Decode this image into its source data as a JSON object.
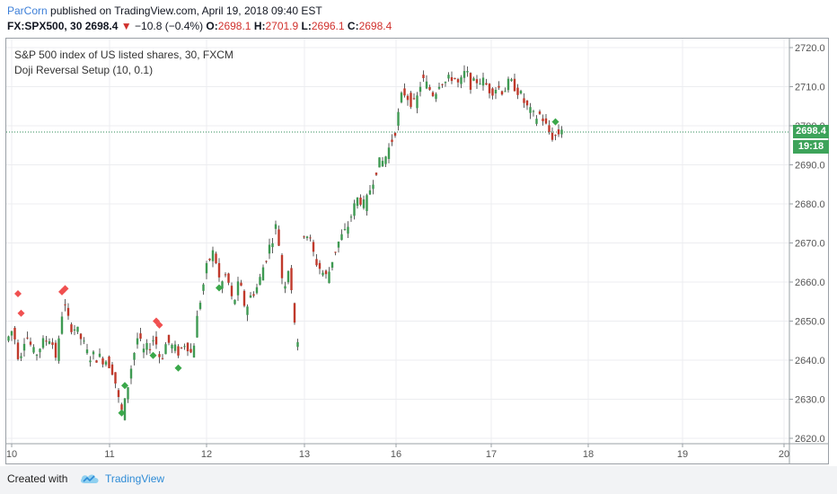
{
  "header": {
    "author": "ParCorn",
    "published_text": "published on TradingView.com, April 19, 2018 09:40 EST",
    "symbol": "FX:SPX500, 30",
    "last": "2698.4",
    "change": "−10.8 (−0.4%)",
    "o_label": "O:",
    "o_value": "2698.1",
    "h_label": "H:",
    "h_value": "2701.9",
    "l_label": "L:",
    "l_value": "2696.1",
    "c_label": "C:",
    "c_value": "2698.4"
  },
  "legend": {
    "title": "S&P 500 index of US listed shares, 30, FXCM",
    "indicator": "Doji Reversal Setup (10, 0.1)"
  },
  "price_tag": {
    "value": "2698.4",
    "timer": "19:18"
  },
  "footer": {
    "created_with": "Created with",
    "brand": "TradingView"
  },
  "colors": {
    "up": "#3e9a52",
    "down": "#c0392b",
    "wick": "#333333",
    "grid": "#ecedf0",
    "price_line": "#2e8b57",
    "price_tag": "#3da35a",
    "marker_bear": "#f05050",
    "marker_bull": "#3aa84a"
  },
  "chart_data": {
    "type": "candlestick",
    "title": "S&P 500 index of US listed shares, 30, FXCM",
    "y_ticks": [
      "2620.0",
      "2630.0",
      "2640.0",
      "2650.0",
      "2660.0",
      "2670.0",
      "2680.0",
      "2690.0",
      "2700.0",
      "2710.0",
      "2720.0"
    ],
    "ylim": [
      2619,
      2722
    ],
    "x_ticks": [
      "10",
      "11",
      "12",
      "13",
      "16",
      "17",
      "18",
      "19",
      "20"
    ],
    "current_price": 2698.4,
    "grid": true,
    "close_path": [
      [
        0,
        2645
      ],
      [
        2,
        2648
      ],
      [
        4,
        2640
      ],
      [
        6,
        2647
      ],
      [
        9,
        2641
      ],
      [
        11,
        2644
      ],
      [
        14,
        2646
      ],
      [
        16,
        2640
      ],
      [
        18,
        2655
      ],
      [
        20,
        2649
      ],
      [
        22,
        2648
      ],
      [
        24,
        2645
      ],
      [
        26,
        2641
      ],
      [
        28,
        2641
      ],
      [
        32,
        2640
      ],
      [
        34,
        2637
      ],
      [
        36,
        2628
      ],
      [
        37,
        2626
      ],
      [
        38,
        2631
      ],
      [
        40,
        2640
      ],
      [
        42,
        2647
      ],
      [
        43,
        2642
      ],
      [
        45,
        2643
      ],
      [
        47,
        2646
      ],
      [
        49,
        2640
      ],
      [
        51,
        2645
      ],
      [
        53,
        2643
      ],
      [
        55,
        2642
      ],
      [
        57,
        2645
      ],
      [
        59,
        2641
      ],
      [
        61,
        2653
      ],
      [
        64,
        2665
      ],
      [
        66,
        2668
      ],
      [
        68,
        2659
      ],
      [
        70,
        2662
      ],
      [
        72,
        2654
      ],
      [
        74,
        2660
      ],
      [
        76,
        2653
      ],
      [
        78,
        2657
      ],
      [
        80,
        2659
      ],
      [
        82,
        2665
      ],
      [
        84,
        2670
      ],
      [
        86,
        2675
      ],
      [
        88,
        2658
      ],
      [
        90,
        2665
      ],
      [
        92,
        2644
      ],
      [
        null,
        null
      ],
      [
        94,
        2673
      ],
      [
        96,
        2672
      ],
      [
        98,
        2666
      ],
      [
        100,
        2663
      ],
      [
        102,
        2661
      ],
      [
        104,
        2667
      ],
      [
        106,
        2671
      ],
      [
        108,
        2673
      ],
      [
        110,
        2678
      ],
      [
        112,
        2682
      ],
      [
        114,
        2679
      ],
      [
        116,
        2685
      ],
      [
        118,
        2690
      ],
      [
        120,
        2691
      ],
      [
        122,
        2695
      ],
      [
        124,
        2700
      ],
      [
        126,
        2709
      ],
      [
        128,
        2707
      ],
      [
        130,
        2705
      ],
      [
        132,
        2712
      ],
      [
        134,
        2710
      ],
      [
        136,
        2708
      ],
      [
        138,
        2712
      ],
      [
        140,
        2711
      ],
      [
        142,
        2713
      ],
      [
        144,
        2710
      ],
      [
        146,
        2714
      ],
      [
        148,
        2710
      ],
      [
        150,
        2712
      ],
      [
        152,
        2711
      ],
      [
        154,
        2709
      ],
      [
        156,
        2710
      ],
      [
        158,
        2709
      ],
      [
        160,
        2711
      ],
      [
        162,
        2710
      ],
      [
        164,
        2707
      ],
      [
        166,
        2704
      ],
      [
        168,
        2702
      ],
      [
        170,
        2703
      ],
      [
        172,
        2699
      ],
      [
        174,
        2697
      ],
      [
        176,
        2698.4
      ]
    ],
    "markers": [
      {
        "type": "bearish",
        "x": 3,
        "y": 2657
      },
      {
        "type": "bearish",
        "x": 4,
        "y": 2652
      },
      {
        "type": "bearish",
        "x": 17,
        "y": 2657.5
      },
      {
        "type": "bearish",
        "x": 18,
        "y": 2658.3
      },
      {
        "type": "bearish",
        "x": 47,
        "y": 2650
      },
      {
        "type": "bearish",
        "x": 48,
        "y": 2649
      },
      {
        "type": "bullish",
        "x": 36,
        "y": 2626.5
      },
      {
        "type": "bullish",
        "x": 37,
        "y": 2633.5
      },
      {
        "type": "bullish",
        "x": 46,
        "y": 2641.2
      },
      {
        "type": "bullish",
        "x": 54,
        "y": 2638
      },
      {
        "type": "bullish",
        "x": 67,
        "y": 2658.5
      },
      {
        "type": "bullish",
        "x": 174,
        "y": 2701
      }
    ]
  }
}
